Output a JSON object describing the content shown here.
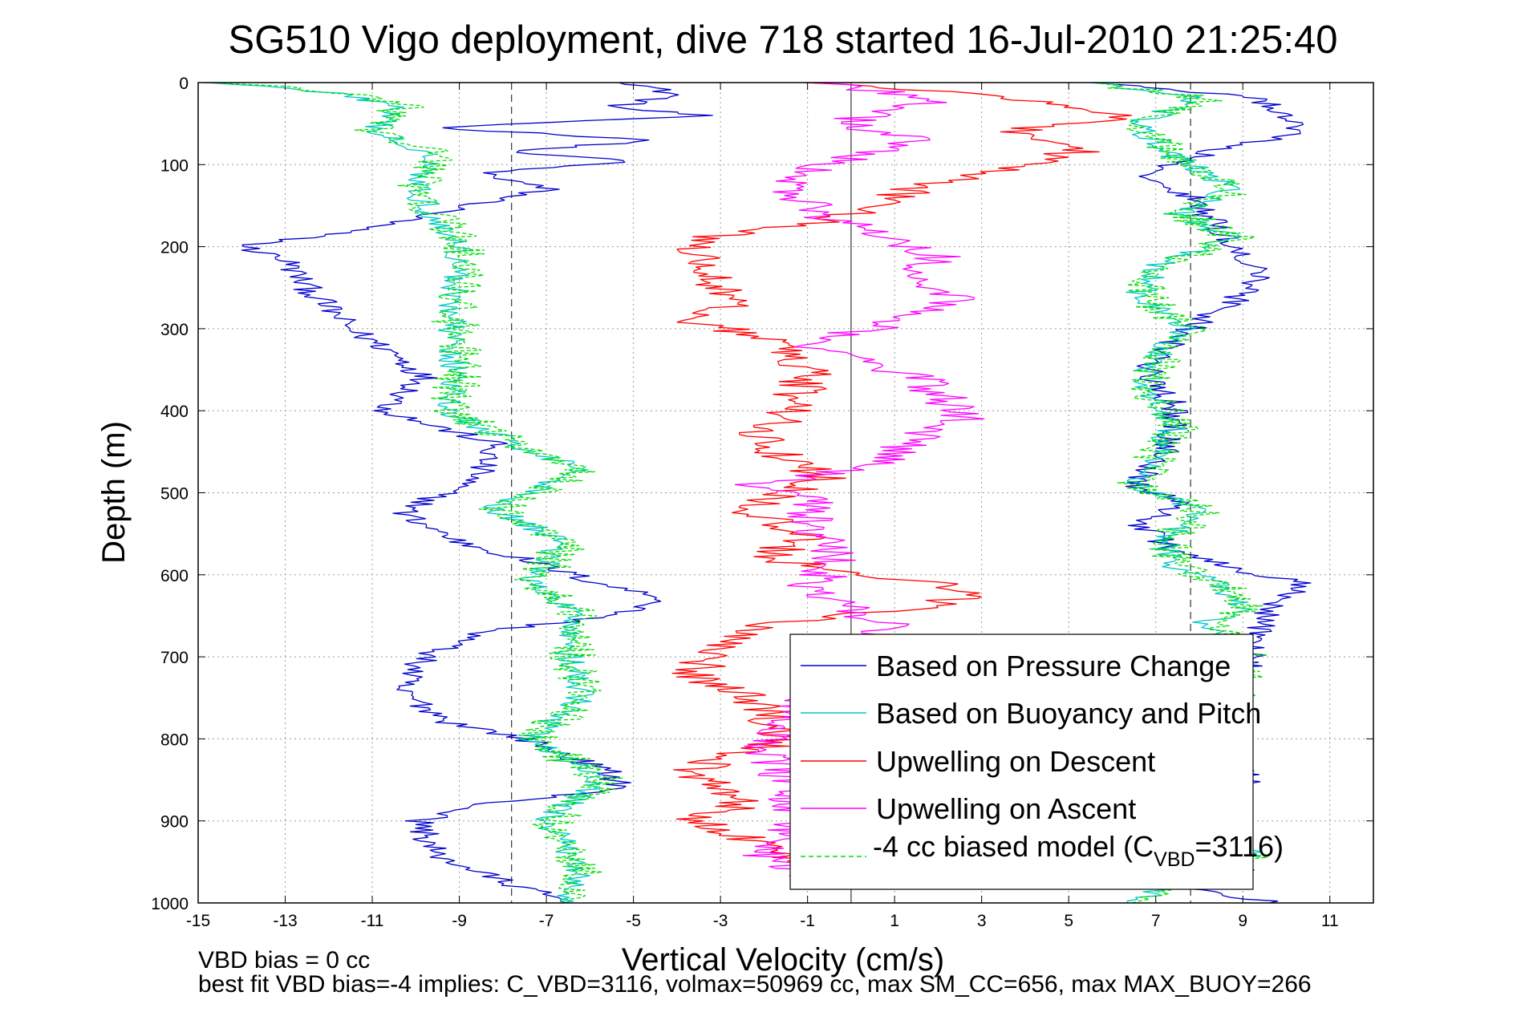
{
  "chart_data": {
    "type": "line",
    "title": "SG510 Vigo deployment, dive 718 started 16-Jul-2010 21:25:40",
    "xlabel": "Vertical Velocity (cm/s)",
    "ylabel": "Depth (m)",
    "xlim": [
      -15,
      12
    ],
    "ylim": [
      0,
      1000
    ],
    "y_reversed": true,
    "grid": true,
    "x_ticks": [
      "-15",
      "-13",
      "-11",
      "-9",
      "-7",
      "-5",
      "-3",
      "-1",
      "1",
      "3",
      "5",
      "7",
      "9",
      "11"
    ],
    "y_ticks": [
      "0",
      "100",
      "200",
      "300",
      "400",
      "500",
      "600",
      "700",
      "800",
      "900",
      "1000"
    ],
    "reference_lines": [
      {
        "x": -7.8,
        "style": "dashed"
      },
      {
        "x": 0,
        "style": "solid"
      },
      {
        "x": 7.8,
        "style": "dashed"
      }
    ],
    "legend_position": "bottom-right",
    "legend": {
      "pressure": "Based on Pressure Change",
      "buoyancy": "Based on Buoyancy and Pitch",
      "up_descent": "Upwelling on Descent",
      "up_ascent": "Upwelling on Ascent",
      "biased_pre": "-4 cc biased model (C",
      "biased_sub": "VBD",
      "biased_post": "=3116)"
    },
    "series": [
      {
        "key": "pressure_descent",
        "color": "#0000cc",
        "style": "solid",
        "points": [
          [
            -5,
            0
          ],
          [
            -4,
            15
          ],
          [
            -5.5,
            30
          ],
          [
            -3.5,
            40
          ],
          [
            -9.5,
            55
          ],
          [
            -4.5,
            70
          ],
          [
            -8,
            85
          ],
          [
            -5,
            95
          ],
          [
            -8.5,
            110
          ],
          [
            -7,
            130
          ],
          [
            -10.5,
            170
          ],
          [
            -12,
            185
          ],
          [
            -14,
            200
          ],
          [
            -13,
            215
          ],
          [
            -12.5,
            250
          ],
          [
            -11.5,
            300
          ],
          [
            -10.5,
            330
          ],
          [
            -9.8,
            360
          ],
          [
            -10.7,
            400
          ],
          [
            -9.5,
            420
          ],
          [
            -8.2,
            440
          ],
          [
            -8.6,
            480
          ],
          [
            -10.3,
            525
          ],
          [
            -9,
            560
          ],
          [
            -7.6,
            580
          ],
          [
            -5.8,
            610
          ],
          [
            -4.2,
            630
          ],
          [
            -5.5,
            650
          ],
          [
            -8.5,
            670
          ],
          [
            -9.8,
            700
          ],
          [
            -10.4,
            740
          ],
          [
            -9.2,
            780
          ],
          [
            -7.5,
            800
          ],
          [
            -5.6,
            840
          ],
          [
            -5.2,
            860
          ],
          [
            -8.5,
            880
          ],
          [
            -9.9,
            900
          ],
          [
            -9.6,
            940
          ],
          [
            -8.2,
            970
          ],
          [
            -6.5,
            1000
          ]
        ]
      },
      {
        "key": "buoyancy_descent",
        "color": "#00c8c8",
        "style": "solid",
        "points": [
          [
            -14.5,
            0
          ],
          [
            -11.5,
            15
          ],
          [
            -10.5,
            30
          ],
          [
            -11,
            60
          ],
          [
            -9.5,
            90
          ],
          [
            -10,
            130
          ],
          [
            -9.5,
            170
          ],
          [
            -9,
            200
          ],
          [
            -9.1,
            250
          ],
          [
            -9.2,
            300
          ],
          [
            -9.1,
            350
          ],
          [
            -9.3,
            400
          ],
          [
            -7.8,
            440
          ],
          [
            -6.2,
            470
          ],
          [
            -8.2,
            520
          ],
          [
            -6.6,
            560
          ],
          [
            -7.4,
            610
          ],
          [
            -6.3,
            650
          ],
          [
            -6.5,
            700
          ],
          [
            -6.2,
            750
          ],
          [
            -7.4,
            800
          ],
          [
            -5.8,
            850
          ],
          [
            -7,
            900
          ],
          [
            -6.2,
            960
          ],
          [
            -6.7,
            1000
          ]
        ]
      },
      {
        "key": "biased_descent",
        "color": "#00dd00",
        "style": "dashed",
        "points": [
          [
            -14.5,
            0
          ],
          [
            -11.2,
            15
          ],
          [
            -10.3,
            30
          ],
          [
            -11,
            60
          ],
          [
            -9.3,
            90
          ],
          [
            -10.1,
            130
          ],
          [
            -9.4,
            170
          ],
          [
            -8.9,
            200
          ],
          [
            -9,
            250
          ],
          [
            -9.1,
            300
          ],
          [
            -9,
            350
          ],
          [
            -9.2,
            400
          ],
          [
            -7.7,
            440
          ],
          [
            -6.1,
            470
          ],
          [
            -8.1,
            520
          ],
          [
            -6.5,
            560
          ],
          [
            -7.3,
            610
          ],
          [
            -6.2,
            650
          ],
          [
            -6.4,
            700
          ],
          [
            -6.1,
            750
          ],
          [
            -7.3,
            800
          ],
          [
            -5.7,
            850
          ],
          [
            -6.9,
            900
          ],
          [
            -6.1,
            960
          ],
          [
            -6.6,
            1000
          ]
        ]
      },
      {
        "key": "pressure_ascent",
        "color": "#0000cc",
        "style": "solid",
        "points": [
          [
            9.8,
            1000
          ],
          [
            7,
            975
          ],
          [
            9,
            960
          ],
          [
            8.6,
            900
          ],
          [
            9.2,
            850
          ],
          [
            8.4,
            800
          ],
          [
            8.7,
            760
          ],
          [
            9.2,
            700
          ],
          [
            9.4,
            660
          ],
          [
            9.7,
            640
          ],
          [
            10.3,
            610
          ],
          [
            8.6,
            590
          ],
          [
            7.4,
            570
          ],
          [
            6.7,
            540
          ],
          [
            7.5,
            510
          ],
          [
            6.5,
            490
          ],
          [
            7.2,
            450
          ],
          [
            7.5,
            400
          ],
          [
            6.8,
            350
          ],
          [
            7.5,
            310
          ],
          [
            8.7,
            270
          ],
          [
            9.4,
            240
          ],
          [
            8.9,
            200
          ],
          [
            8.3,
            170
          ],
          [
            7.8,
            140
          ],
          [
            6.8,
            110
          ],
          [
            8.5,
            80
          ],
          [
            10.5,
            60
          ],
          [
            9.8,
            40
          ],
          [
            9.4,
            20
          ],
          [
            7.7,
            10
          ],
          [
            5.5,
            0
          ]
        ]
      },
      {
        "key": "buoyancy_ascent",
        "color": "#00c8c8",
        "style": "solid",
        "points": [
          [
            6.5,
            1000
          ],
          [
            7.5,
            975
          ],
          [
            9.2,
            940
          ],
          [
            7.5,
            900
          ],
          [
            7.3,
            850
          ],
          [
            8.8,
            800
          ],
          [
            8.6,
            760
          ],
          [
            9,
            700
          ],
          [
            8.1,
            660
          ],
          [
            9,
            640
          ],
          [
            8.5,
            610
          ],
          [
            7.4,
            590
          ],
          [
            7.2,
            560
          ],
          [
            8,
            520
          ],
          [
            6.5,
            490
          ],
          [
            7,
            450
          ],
          [
            7.4,
            420
          ],
          [
            6.8,
            380
          ],
          [
            6.9,
            340
          ],
          [
            7.6,
            300
          ],
          [
            6.6,
            260
          ],
          [
            7.1,
            220
          ],
          [
            8.8,
            190
          ],
          [
            7.5,
            160
          ],
          [
            8.8,
            130
          ],
          [
            7.4,
            90
          ],
          [
            6.5,
            50
          ],
          [
            8,
            20
          ],
          [
            5.5,
            0
          ]
        ]
      },
      {
        "key": "biased_ascent",
        "color": "#00dd00",
        "style": "dashed",
        "points": [
          [
            6.6,
            1000
          ],
          [
            7.6,
            975
          ],
          [
            9.3,
            940
          ],
          [
            7.6,
            900
          ],
          [
            7.4,
            850
          ],
          [
            8.9,
            800
          ],
          [
            8.7,
            760
          ],
          [
            9.1,
            700
          ],
          [
            8.2,
            660
          ],
          [
            9.1,
            640
          ],
          [
            8.6,
            610
          ],
          [
            7.5,
            590
          ],
          [
            7.3,
            560
          ],
          [
            8.1,
            520
          ],
          [
            6.6,
            490
          ],
          [
            7.1,
            450
          ],
          [
            7.5,
            420
          ],
          [
            6.9,
            380
          ],
          [
            7,
            340
          ],
          [
            7.7,
            300
          ],
          [
            6.7,
            260
          ],
          [
            7.2,
            220
          ],
          [
            8.9,
            190
          ],
          [
            7.6,
            160
          ],
          [
            8.9,
            130
          ],
          [
            7.5,
            90
          ],
          [
            6.6,
            50
          ],
          [
            8.1,
            20
          ],
          [
            5.6,
            0
          ]
        ]
      },
      {
        "key": "upwelling_descent",
        "color": "#ff0000",
        "style": "solid",
        "points": [
          [
            -1,
            0
          ],
          [
            3,
            15
          ],
          [
            5,
            30
          ],
          [
            6.5,
            40
          ],
          [
            3.5,
            60
          ],
          [
            5.5,
            80
          ],
          [
            4,
            100
          ],
          [
            1.5,
            130
          ],
          [
            -0.5,
            170
          ],
          [
            -3.5,
            190
          ],
          [
            -3.2,
            240
          ],
          [
            -2.5,
            270
          ],
          [
            -3.6,
            290
          ],
          [
            -1.5,
            320
          ],
          [
            -1,
            360
          ],
          [
            -1.5,
            400
          ],
          [
            -2.2,
            440
          ],
          [
            -0.6,
            480
          ],
          [
            -2.5,
            520
          ],
          [
            -1,
            550
          ],
          [
            -2,
            580
          ],
          [
            0.5,
            600
          ],
          [
            3,
            620
          ],
          [
            1.5,
            640
          ],
          [
            -1.8,
            660
          ],
          [
            -3.2,
            690
          ],
          [
            -3.6,
            720
          ],
          [
            -2,
            760
          ],
          [
            -1.5,
            800
          ],
          [
            -3.8,
            840
          ],
          [
            -2.5,
            880
          ],
          [
            -3.6,
            900
          ],
          [
            -1.5,
            940
          ],
          [
            -0.6,
            980
          ]
        ]
      },
      {
        "key": "upwelling_ascent",
        "color": "#ff00ff",
        "style": "solid",
        "points": [
          [
            -1,
            0
          ],
          [
            2,
            20
          ],
          [
            -0.3,
            50
          ],
          [
            1.5,
            70
          ],
          [
            -0.6,
            100
          ],
          [
            -1.4,
            120
          ],
          [
            -0.8,
            160
          ],
          [
            2,
            210
          ],
          [
            1.4,
            240
          ],
          [
            2.5,
            260
          ],
          [
            1.2,
            290
          ],
          [
            -1.2,
            320
          ],
          [
            0.2,
            340
          ],
          [
            1.5,
            360
          ],
          [
            2,
            380
          ],
          [
            2.5,
            410
          ],
          [
            1.3,
            440
          ],
          [
            0.4,
            470
          ],
          [
            -2.3,
            490
          ],
          [
            -0.8,
            510
          ],
          [
            -1.1,
            540
          ],
          [
            -0.3,
            580
          ],
          [
            -1,
            620
          ],
          [
            0.8,
            660
          ],
          [
            -1.2,
            760
          ],
          [
            -2,
            800
          ],
          [
            -1.4,
            860
          ],
          [
            -1.2,
            900
          ],
          [
            -2,
            940
          ],
          [
            -0.2,
            980
          ]
        ]
      }
    ]
  },
  "footer": {
    "line1": "VBD bias = 0 cc",
    "line2": "best fit VBD bias=-4 implies: C_VBD=3116, volmax=50969 cc, max SM_CC=656, max MAX_BUOY=266"
  }
}
